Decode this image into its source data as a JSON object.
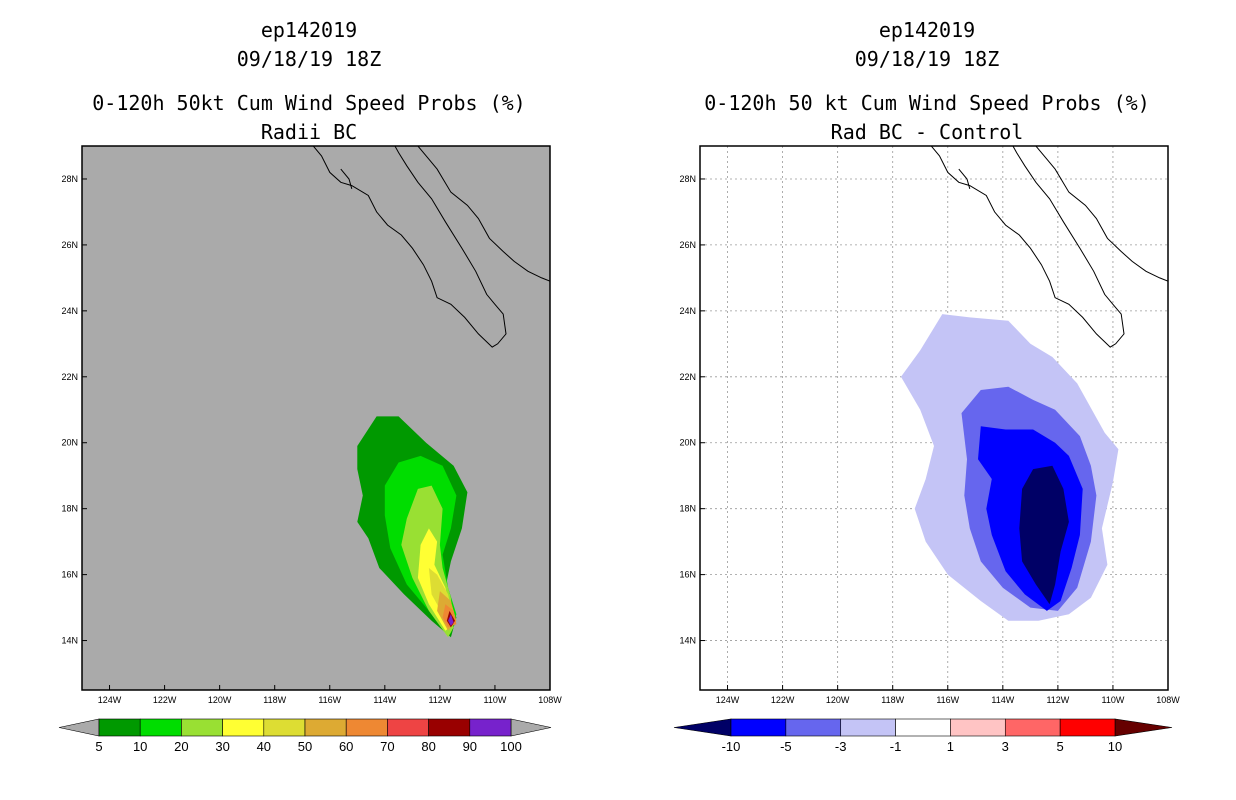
{
  "colors": {
    "left_background": "#aaaaaa",
    "right_background": "#ffffff"
  },
  "chart_data": [
    {
      "type": "filled-contour-map",
      "title": [
        "ep142019",
        "09/18/19 18Z",
        "0-120h 50kt Cum Wind Speed Probs (%)",
        "Radii BC"
      ],
      "xlabel": "",
      "ylabel": "",
      "xlim": [
        -125,
        -108
      ],
      "ylim": [
        12.5,
        29
      ],
      "x_ticks": [
        "124W",
        "122W",
        "120W",
        "118W",
        "116W",
        "114W",
        "112W",
        "110W",
        "108W"
      ],
      "y_ticks": [
        "14N",
        "16N",
        "18N",
        "20N",
        "22N",
        "24N",
        "26N",
        "28N"
      ],
      "grid": false,
      "colorbar": {
        "levels": [
          "5",
          "10",
          "20",
          "30",
          "40",
          "50",
          "60",
          "70",
          "80",
          "90",
          "100"
        ],
        "colors": [
          "#aaaaaa",
          "#009900",
          "#00dd00",
          "#99e033",
          "#ffff33",
          "#dddd33",
          "#ddaa33",
          "#ee8833",
          "#ee4444",
          "#990000",
          "#7722cc",
          "#aaaaaa"
        ]
      },
      "contours": [
        {
          "level": 5,
          "color": "#009900",
          "points": [
            [
              -115,
              19.9
            ],
            [
              -114.3,
              20.8
            ],
            [
              -113.5,
              20.8
            ],
            [
              -112.5,
              20.0
            ],
            [
              -111.5,
              19.3
            ],
            [
              -111.0,
              18.5
            ],
            [
              -111.2,
              17.4
            ],
            [
              -111.6,
              16.4
            ],
            [
              -111.8,
              15.6
            ],
            [
              -111.4,
              14.7
            ],
            [
              -111.6,
              14.1
            ],
            [
              -112.3,
              14.6
            ],
            [
              -113.3,
              15.4
            ],
            [
              -114.2,
              16.2
            ],
            [
              -114.6,
              17.1
            ],
            [
              -115.0,
              17.6
            ],
            [
              -114.8,
              18.4
            ],
            [
              -115.0,
              19.2
            ]
          ]
        },
        {
          "level": 10,
          "color": "#00dd00",
          "points": [
            [
              -114.0,
              18.7
            ],
            [
              -113.5,
              19.4
            ],
            [
              -112.7,
              19.6
            ],
            [
              -111.9,
              19.3
            ],
            [
              -111.4,
              18.4
            ],
            [
              -111.6,
              17.4
            ],
            [
              -111.9,
              16.6
            ],
            [
              -111.7,
              15.6
            ],
            [
              -111.4,
              14.8
            ],
            [
              -111.6,
              14.2
            ],
            [
              -112.4,
              14.9
            ],
            [
              -113.2,
              15.7
            ],
            [
              -113.8,
              16.8
            ],
            [
              -114.0,
              17.8
            ]
          ]
        },
        {
          "level": 20,
          "color": "#99e033",
          "points": [
            [
              -113.2,
              17.7
            ],
            [
              -112.8,
              18.6
            ],
            [
              -112.3,
              18.7
            ],
            [
              -111.9,
              18.0
            ],
            [
              -112.0,
              16.9
            ],
            [
              -111.9,
              16.2
            ],
            [
              -111.6,
              15.3
            ],
            [
              -111.5,
              14.4
            ],
            [
              -111.7,
              14.1
            ],
            [
              -112.4,
              14.9
            ],
            [
              -113.0,
              15.9
            ],
            [
              -113.4,
              16.9
            ]
          ]
        },
        {
          "level": 30,
          "color": "#ffff33",
          "points": [
            [
              -112.7,
              16.9
            ],
            [
              -112.4,
              17.4
            ],
            [
              -112.1,
              17.0
            ],
            [
              -112.2,
              16.3
            ],
            [
              -111.8,
              15.6
            ],
            [
              -111.5,
              14.5
            ],
            [
              -111.8,
              14.3
            ],
            [
              -112.4,
              15.1
            ],
            [
              -112.8,
              15.9
            ]
          ]
        },
        {
          "level": 40,
          "color": "#dddd33",
          "points": [
            [
              -112.4,
              16.2
            ],
            [
              -112.1,
              16.0
            ],
            [
              -111.7,
              15.4
            ],
            [
              -111.5,
              14.6
            ],
            [
              -111.9,
              14.8
            ],
            [
              -112.3,
              15.4
            ]
          ]
        },
        {
          "level": 50,
          "color": "#ddaa33",
          "points": [
            [
              -112.0,
              15.5
            ],
            [
              -111.6,
              15.2
            ],
            [
              -111.4,
              14.6
            ],
            [
              -111.7,
              14.3
            ],
            [
              -112.1,
              14.9
            ]
          ]
        },
        {
          "level": 60,
          "color": "#ee8833",
          "points": [
            [
              -111.8,
              15.1
            ],
            [
              -111.5,
              14.9
            ],
            [
              -111.4,
              14.5
            ],
            [
              -111.7,
              14.4
            ],
            [
              -111.9,
              14.7
            ]
          ]
        },
        {
          "level": 80,
          "color": "#990000",
          "points": [
            [
              -111.65,
              14.9
            ],
            [
              -111.45,
              14.6
            ],
            [
              -111.6,
              14.4
            ],
            [
              -111.75,
              14.6
            ]
          ]
        },
        {
          "level": 90,
          "color": "#7722cc",
          "points": [
            [
              -111.6,
              14.8
            ],
            [
              -111.5,
              14.55
            ],
            [
              -111.6,
              14.45
            ],
            [
              -111.7,
              14.6
            ]
          ]
        }
      ]
    },
    {
      "type": "filled-contour-map",
      "title": [
        "ep142019",
        "09/18/19 18Z",
        "0-120h 50 kt Cum Wind Speed Probs (%)",
        "Rad BC - Control"
      ],
      "xlabel": "",
      "ylabel": "",
      "xlim": [
        -125,
        -108
      ],
      "ylim": [
        12.5,
        29
      ],
      "x_ticks": [
        "124W",
        "122W",
        "120W",
        "118W",
        "116W",
        "114W",
        "112W",
        "110W",
        "108W"
      ],
      "y_ticks": [
        "14N",
        "16N",
        "18N",
        "20N",
        "22N",
        "24N",
        "26N",
        "28N"
      ],
      "grid": true,
      "colorbar": {
        "levels": [
          "-10",
          "-5",
          "-3",
          "-1",
          "1",
          "3",
          "5",
          "10"
        ],
        "colors": [
          "#000066",
          "#0000ff",
          "#6666ee",
          "#c4c4f6",
          "#ffffff",
          "#ffc4c4",
          "#ff6666",
          "#ff0000",
          "#660000"
        ]
      },
      "contours": [
        {
          "level": -1,
          "color": "#c4c4f6",
          "points": [
            [
              -117.7,
              22.0
            ],
            [
              -117.0,
              22.8
            ],
            [
              -116.2,
              23.9
            ],
            [
              -115.2,
              23.8
            ],
            [
              -113.8,
              23.7
            ],
            [
              -113.0,
              23.0
            ],
            [
              -112.2,
              22.6
            ],
            [
              -111.3,
              21.8
            ],
            [
              -110.3,
              20.3
            ],
            [
              -109.8,
              19.8
            ],
            [
              -110.0,
              18.8
            ],
            [
              -110.4,
              17.4
            ],
            [
              -110.2,
              16.3
            ],
            [
              -110.8,
              15.3
            ],
            [
              -111.6,
              14.8
            ],
            [
              -112.7,
              14.6
            ],
            [
              -113.8,
              14.6
            ],
            [
              -114.8,
              15.2
            ],
            [
              -116.0,
              16.0
            ],
            [
              -116.8,
              17.0
            ],
            [
              -117.2,
              18.0
            ],
            [
              -116.8,
              18.9
            ],
            [
              -116.5,
              19.9
            ],
            [
              -117.0,
              21.0
            ]
          ]
        },
        {
          "level": -3,
          "color": "#6666ee",
          "points": [
            [
              -115.5,
              20.9
            ],
            [
              -114.8,
              21.6
            ],
            [
              -113.8,
              21.7
            ],
            [
              -112.9,
              21.3
            ],
            [
              -112.1,
              21.0
            ],
            [
              -111.2,
              20.2
            ],
            [
              -110.8,
              19.3
            ],
            [
              -110.6,
              18.4
            ],
            [
              -110.8,
              17.0
            ],
            [
              -111.3,
              15.6
            ],
            [
              -112.0,
              14.9
            ],
            [
              -113.0,
              15.0
            ],
            [
              -114.0,
              15.6
            ],
            [
              -114.8,
              16.4
            ],
            [
              -115.2,
              17.4
            ],
            [
              -115.4,
              18.4
            ],
            [
              -115.3,
              19.5
            ]
          ]
        },
        {
          "level": -5,
          "color": "#0000ff",
          "points": [
            [
              -114.8,
              20.5
            ],
            [
              -113.9,
              20.4
            ],
            [
              -112.9,
              20.4
            ],
            [
              -112.1,
              20.0
            ],
            [
              -111.6,
              19.6
            ],
            [
              -111.1,
              18.6
            ],
            [
              -111.2,
              17.2
            ],
            [
              -111.5,
              16.2
            ],
            [
              -111.9,
              15.2
            ],
            [
              -112.4,
              14.9
            ],
            [
              -113.2,
              15.4
            ],
            [
              -113.9,
              16.1
            ],
            [
              -114.4,
              17.2
            ],
            [
              -114.6,
              18.0
            ],
            [
              -114.4,
              18.9
            ],
            [
              -114.9,
              19.5
            ]
          ]
        },
        {
          "level": -10,
          "color": "#000066",
          "points": [
            [
              -113.3,
              18.6
            ],
            [
              -112.9,
              19.2
            ],
            [
              -112.2,
              19.3
            ],
            [
              -111.8,
              18.6
            ],
            [
              -111.6,
              17.6
            ],
            [
              -111.9,
              16.7
            ],
            [
              -112.1,
              15.7
            ],
            [
              -112.3,
              15.1
            ],
            [
              -112.8,
              15.7
            ],
            [
              -113.3,
              16.4
            ],
            [
              -113.4,
              17.4
            ]
          ]
        }
      ]
    }
  ],
  "coastline": [
    [
      [
        -116.7,
        29.1
      ],
      [
        -116.3,
        28.7
      ],
      [
        -116.0,
        28.2
      ],
      [
        -115.6,
        27.9
      ],
      [
        -115.2,
        27.8
      ],
      [
        -114.6,
        27.5
      ],
      [
        -114.3,
        27.0
      ],
      [
        -113.9,
        26.6
      ],
      [
        -113.4,
        26.3
      ],
      [
        -113.0,
        25.9
      ],
      [
        -112.6,
        25.4
      ],
      [
        -112.3,
        24.9
      ],
      [
        -112.1,
        24.4
      ],
      [
        -111.6,
        24.2
      ],
      [
        -111.1,
        23.8
      ],
      [
        -110.6,
        23.3
      ],
      [
        -110.1,
        22.9
      ],
      [
        -109.9,
        23.0
      ],
      [
        -109.6,
        23.3
      ],
      [
        -109.7,
        23.9
      ],
      [
        -110.0,
        24.2
      ],
      [
        -110.3,
        24.5
      ],
      [
        -110.7,
        25.2
      ],
      [
        -111.2,
        25.9
      ],
      [
        -111.8,
        26.7
      ],
      [
        -112.3,
        27.4
      ],
      [
        -112.8,
        27.9
      ],
      [
        -113.2,
        28.4
      ],
      [
        -113.5,
        28.8
      ],
      [
        -113.7,
        29.1
      ]
    ],
    [
      [
        -112.9,
        29.1
      ],
      [
        -112.4,
        28.6
      ],
      [
        -112.1,
        28.3
      ],
      [
        -111.6,
        27.6
      ],
      [
        -111.0,
        27.2
      ],
      [
        -110.6,
        26.8
      ],
      [
        -110.2,
        26.2
      ],
      [
        -109.7,
        25.8
      ],
      [
        -109.3,
        25.5
      ],
      [
        -108.8,
        25.2
      ],
      [
        -108.3,
        25.0
      ],
      [
        -108.0,
        24.9
      ]
    ],
    [
      [
        -115.6,
        28.3
      ],
      [
        -115.3,
        28.0
      ],
      [
        -115.2,
        27.7
      ]
    ]
  ]
}
